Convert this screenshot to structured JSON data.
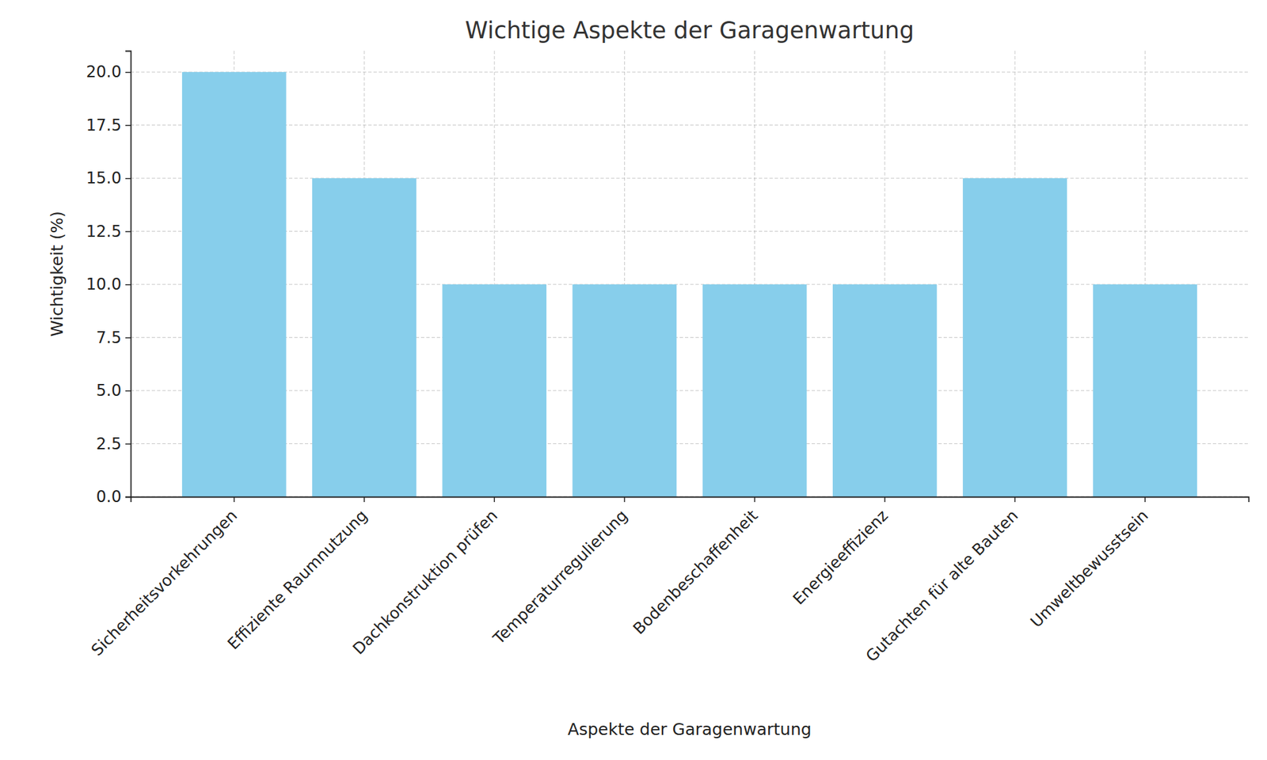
{
  "chart_data": {
    "type": "bar",
    "title": "Wichtige Aspekte der Garagenwartung",
    "x_label": "Aspekte der Garagenwartung",
    "y_label": "Wichtigkeit (%)",
    "categories": [
      "Sicherheitsvorkehrungen",
      "Effiziente Raumnutzung",
      "Dachkonstruktion prüfen",
      "Temperaturregulierung",
      "Bodenbeschaffenheit",
      "Energieeffizienz",
      "Gutachten für alte Bauten",
      "Umweltbewusstsein"
    ],
    "values": [
      20,
      15,
      10,
      10,
      10,
      10,
      15,
      10
    ],
    "color": "#87ceeb",
    "ylim": [
      0,
      21
    ],
    "yticks": [
      {
        "value": 0,
        "label": "0.0"
      },
      2.5,
      {
        "value": 5,
        "label": "5.0"
      },
      7.5,
      {
        "value": 10,
        "label": "10.0"
      },
      12.5,
      {
        "value": 15,
        "label": "15.0"
      },
      17.5,
      {
        "value": 20,
        "label": "20.0"
      }
    ],
    "grid": true
  }
}
